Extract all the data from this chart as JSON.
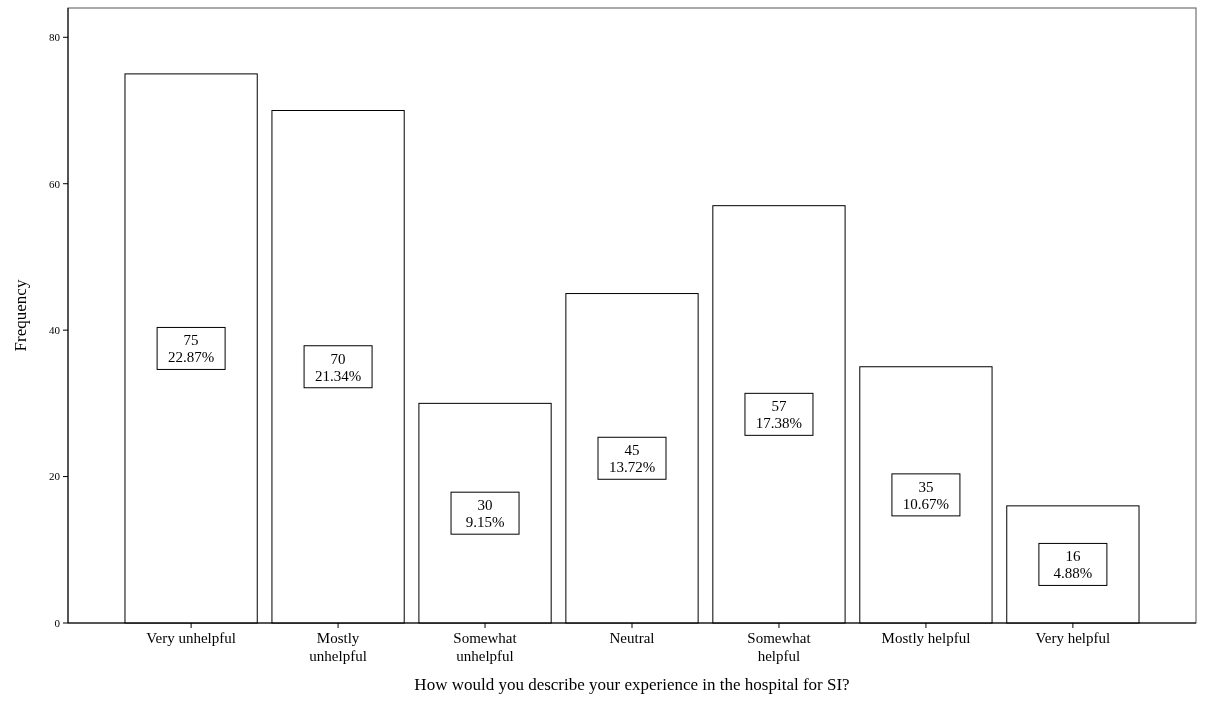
{
  "chart_data": {
    "type": "bar",
    "xlabel": "How would you describe your experience in the hospital for SI?",
    "ylabel": "Frequency",
    "categories": [
      "Very unhelpful",
      "Mostly\nunhelpful",
      "Somewhat\nunhelpful",
      "Neutral",
      "Somewhat\nhelpful",
      "Mostly helpful",
      "Very helpful"
    ],
    "values": [
      75,
      70,
      30,
      45,
      57,
      35,
      16
    ],
    "value_labels": [
      "75\n22.87%",
      "70\n21.34%",
      "30\n9.15%",
      "45\n13.72%",
      "57\n17.38%",
      "35\n10.67%",
      "16\n4.88%"
    ],
    "color": "#ffffff",
    "ylim": [
      0,
      84
    ],
    "yticks": [
      0,
      20,
      40,
      60,
      80
    ],
    "grid": false
  }
}
